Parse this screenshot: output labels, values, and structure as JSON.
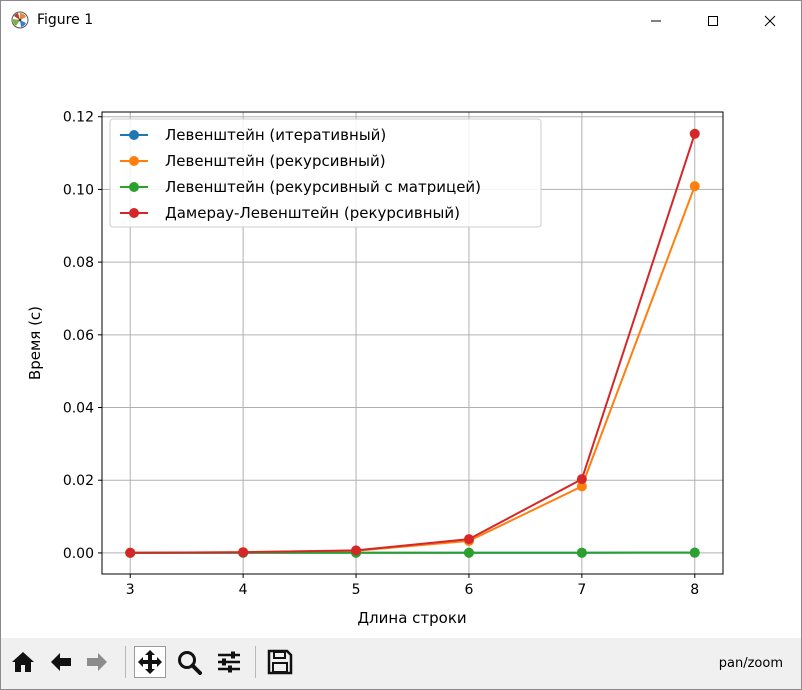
{
  "window": {
    "title": "Figure 1",
    "controls": [
      "minimize-icon",
      "maximize-icon",
      "close-icon"
    ]
  },
  "toolbar": {
    "buttons": [
      "home-icon",
      "back-icon",
      "forward-icon",
      "pan-icon",
      "zoom-icon",
      "configure-subplots-icon",
      "save-icon"
    ],
    "status": "pan/zoom"
  },
  "chart_data": {
    "type": "line",
    "title": "",
    "xlabel": "Длина строки",
    "ylabel": "Время (с)",
    "x": [
      3,
      4,
      5,
      6,
      7,
      8
    ],
    "xlim": [
      2.75,
      8.25
    ],
    "ylim": [
      -0.0058,
      0.1213
    ],
    "xticks": [
      "3",
      "4",
      "5",
      "6",
      "7",
      "8"
    ],
    "xtick_values": [
      3,
      4,
      5,
      6,
      7,
      8
    ],
    "yticks": [
      "0.00",
      "0.02",
      "0.04",
      "0.06",
      "0.08",
      "0.10",
      "0.12"
    ],
    "ytick_values": [
      0,
      0.02,
      0.04,
      0.06,
      0.08,
      0.1,
      0.12
    ],
    "grid": true,
    "legend_position": "upper-left",
    "marker": "circle",
    "series": [
      {
        "name": "Левенштейн (итеративный)",
        "color": "#1f77b4",
        "values": [
          2e-05,
          3e-05,
          4e-05,
          5e-05,
          6e-05,
          7e-05
        ]
      },
      {
        "name": "Левенштейн (рекурсивный)",
        "color": "#ff7f0e",
        "values": [
          5e-05,
          0.0002,
          0.0006,
          0.0033,
          0.0183,
          0.1009
        ]
      },
      {
        "name": "Левенштейн (рекурсивный с матрицей)",
        "color": "#2ca02c",
        "values": [
          2e-05,
          3e-05,
          4e-05,
          5e-05,
          6e-05,
          8e-05
        ]
      },
      {
        "name": "Дамерау-Левенштейн (рекурсивный)",
        "color": "#d62728",
        "values": [
          5e-05,
          0.0002,
          0.0007,
          0.0038,
          0.0203,
          0.1153
        ]
      }
    ]
  }
}
